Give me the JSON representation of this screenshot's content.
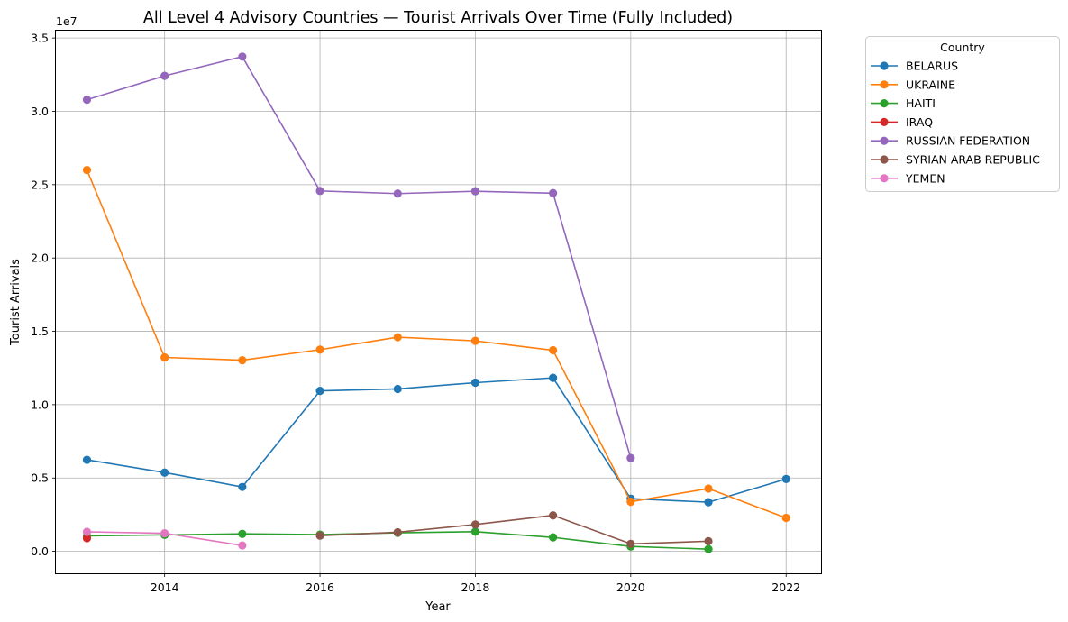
{
  "chart_data": {
    "type": "line",
    "title": "All Level 4 Advisory Countries — Tourist Arrivals Over Time (Fully Included)",
    "xlabel": "Year",
    "ylabel": "Tourist Arrivals",
    "y_offset_label": "1e7",
    "xlim": [
      2012.6,
      2022.45
    ],
    "ylim": [
      -1500000,
      35500000
    ],
    "x_ticks": [
      2014,
      2016,
      2018,
      2020,
      2022
    ],
    "y_ticks": [
      0,
      5000000,
      10000000,
      15000000,
      20000000,
      25000000,
      30000000,
      35000000
    ],
    "y_tick_labels": [
      "0.0",
      "0.5",
      "1.0",
      "1.5",
      "2.0",
      "2.5",
      "3.0",
      "3.5"
    ],
    "grid": true,
    "marker": "circle",
    "legend": {
      "title": "Country",
      "placement": "outside-top-right"
    },
    "series": [
      {
        "name": "BELARUS",
        "color": "#1f77b4",
        "points": [
          [
            2013,
            6240000
          ],
          [
            2014,
            5370000
          ],
          [
            2015,
            4390000
          ],
          [
            2016,
            10940000
          ],
          [
            2017,
            11070000
          ],
          [
            2018,
            11500000
          ],
          [
            2019,
            11830000
          ],
          [
            2020,
            3590000
          ],
          [
            2021,
            3350000
          ],
          [
            2022,
            4930000
          ]
        ]
      },
      {
        "name": "UKRAINE",
        "color": "#ff7f0e",
        "points": [
          [
            2013,
            26000000
          ],
          [
            2014,
            13220000
          ],
          [
            2015,
            13030000
          ],
          [
            2016,
            13750000
          ],
          [
            2017,
            14600000
          ],
          [
            2018,
            14350000
          ],
          [
            2019,
            13710000
          ],
          [
            2020,
            3380000
          ],
          [
            2021,
            4280000
          ],
          [
            2022,
            2280000
          ]
        ]
      },
      {
        "name": "HAITI",
        "color": "#2ca02c",
        "points": [
          [
            2013,
            1050000
          ],
          [
            2014,
            1120000
          ],
          [
            2015,
            1190000
          ],
          [
            2016,
            1140000
          ],
          [
            2017,
            1260000
          ],
          [
            2018,
            1340000
          ],
          [
            2019,
            950000
          ],
          [
            2020,
            330000
          ],
          [
            2021,
            150000
          ]
        ]
      },
      {
        "name": "IRAQ",
        "color": "#d62728",
        "points": [
          [
            2013,
            900000
          ]
        ]
      },
      {
        "name": "RUSSIAN FEDERATION",
        "color": "#9467bd",
        "points": [
          [
            2013,
            30790000
          ],
          [
            2014,
            32420000
          ],
          [
            2015,
            33730000
          ],
          [
            2016,
            24570000
          ],
          [
            2017,
            24390000
          ],
          [
            2018,
            24550000
          ],
          [
            2019,
            24420000
          ],
          [
            2020,
            6360000
          ]
        ]
      },
      {
        "name": "SYRIAN ARAB REPUBLIC",
        "color": "#8c564b",
        "points": [
          [
            2016,
            1070000
          ],
          [
            2017,
            1300000
          ],
          [
            2018,
            1830000
          ],
          [
            2019,
            2450000
          ],
          [
            2020,
            510000
          ],
          [
            2021,
            690000
          ]
        ]
      },
      {
        "name": "YEMEN",
        "color": "#e377c2",
        "points": [
          [
            2013,
            1330000
          ],
          [
            2014,
            1230000
          ],
          [
            2015,
            400000
          ]
        ]
      }
    ]
  }
}
